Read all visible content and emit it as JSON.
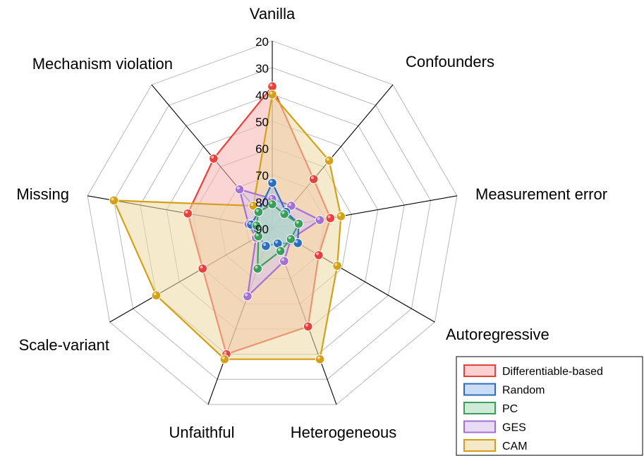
{
  "chart_data": {
    "type": "radar",
    "title": "",
    "axes": [
      "Vanilla",
      "Confounders",
      "Measurement error",
      "Autoregressive",
      "Heterogeneous",
      "Unfaithful",
      "Scale-variant",
      "Missing",
      "Mechanism violation"
    ],
    "ticks": [
      "20",
      "30",
      "40",
      "50",
      "60",
      "70",
      "80",
      "90"
    ],
    "range": [
      90,
      20
    ],
    "reversed_scale": true,
    "grid": true,
    "legend_position": "bottom-right",
    "series": [
      {
        "name": "Differentiable-based",
        "color": "#e8413b",
        "fill": "#f6b3b0",
        "values": [
          37,
          66,
          68,
          70,
          51,
          40,
          60,
          58,
          56
        ]
      },
      {
        "name": "CAM",
        "color": "#d4a017",
        "fill": "#ecd9a3",
        "values": [
          40,
          57,
          64,
          62,
          38,
          38,
          40,
          30,
          79
        ]
      },
      {
        "name": "GES",
        "color": "#a571d1",
        "fill": "#d9c4ec",
        "values": [
          79,
          79,
          72,
          82,
          77,
          63,
          83,
          81,
          71
        ]
      },
      {
        "name": "Random",
        "color": "#2c6dbf",
        "fill": "#a9c6ec",
        "values": [
          73,
          82,
          80,
          79,
          84,
          83,
          84,
          82,
          82
        ]
      },
      {
        "name": "PC",
        "color": "#3a9e5c",
        "fill": "#b1dcbf",
        "values": [
          81,
          83,
          80,
          82,
          81,
          74,
          84,
          84,
          82
        ]
      }
    ],
    "legend": [
      "Differentiable-based",
      "Random",
      "PC",
      "GES",
      "CAM"
    ]
  }
}
